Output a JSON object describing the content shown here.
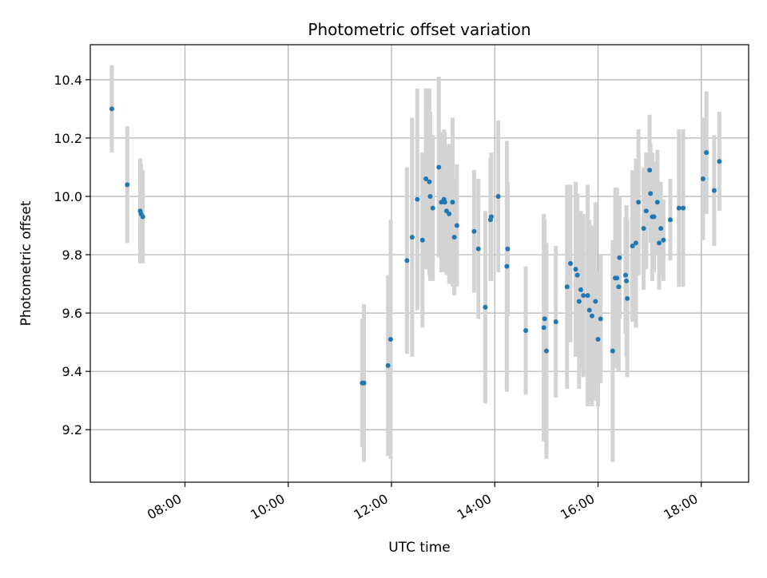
{
  "chart_data": {
    "type": "scatter",
    "title": "Photometric offset variation",
    "xlabel": "UTC time",
    "ylabel": "Photometric offset",
    "x_ticks": [
      "08:00",
      "10:00",
      "12:00",
      "14:00",
      "16:00",
      "18:00"
    ],
    "y_ticks": [
      "9.2",
      "9.4",
      "9.6",
      "9.8",
      "10.0",
      "10.2",
      "10.4"
    ],
    "xlim": [
      "06:10",
      "18:55"
    ],
    "ylim": [
      9.02,
      10.52
    ],
    "grid": true,
    "legend": "none",
    "colors": {
      "point": "#1f77b4",
      "errorbar": "#d3d3d3",
      "grid": "#b0b0b0"
    },
    "series": [
      {
        "x": [
          "06:35",
          "06:53",
          "07:08",
          "07:09",
          "07:11",
          "11:26",
          "11:28",
          "11:56",
          "11:59",
          "12:18",
          "12:24",
          "12:30",
          "12:36",
          "12:40",
          "12:44",
          "12:45",
          "12:48",
          "12:55",
          "12:58",
          "13:01",
          "13:02",
          "13:04",
          "13:07",
          "13:11",
          "13:13",
          "13:16",
          "13:36",
          "13:41",
          "13:49",
          "13:55",
          "13:56",
          "14:04",
          "14:14",
          "14:15",
          "14:36",
          "14:57",
          "14:58",
          "15:00",
          "15:11",
          "15:24",
          "15:28",
          "15:34",
          "15:36",
          "15:38",
          "15:40",
          "15:43",
          "15:48",
          "15:50",
          "15:53",
          "15:57",
          "16:00",
          "16:03",
          "16:17",
          "16:20",
          "16:22",
          "16:24",
          "16:25",
          "16:32",
          "16:33",
          "16:34",
          "16:40",
          "16:44",
          "16:47",
          "16:53",
          "16:56",
          "17:00",
          "17:01",
          "17:03",
          "17:05",
          "17:09",
          "17:11",
          "17:13",
          "17:16",
          "17:24",
          "17:34",
          "17:39",
          "18:02",
          "18:06",
          "18:15",
          "18:21"
        ],
        "y": [
          10.3,
          10.04,
          9.95,
          9.94,
          9.93,
          9.36,
          9.36,
          9.42,
          9.51,
          9.78,
          9.86,
          9.99,
          9.85,
          10.06,
          10.05,
          10.0,
          9.96,
          10.1,
          9.98,
          9.99,
          9.98,
          9.95,
          9.94,
          9.98,
          9.86,
          9.9,
          9.88,
          9.82,
          9.62,
          9.92,
          9.93,
          10.0,
          9.76,
          9.82,
          9.54,
          9.55,
          9.58,
          9.47,
          9.57,
          9.69,
          9.77,
          9.75,
          9.73,
          9.64,
          9.68,
          9.66,
          9.66,
          9.61,
          9.59,
          9.64,
          9.51,
          9.58,
          9.47,
          9.72,
          9.72,
          9.69,
          9.79,
          9.73,
          9.71,
          9.65,
          9.83,
          9.84,
          9.98,
          9.89,
          9.95,
          10.09,
          10.01,
          9.93,
          9.93,
          9.98,
          9.84,
          9.89,
          9.85,
          9.92,
          9.96,
          9.96,
          10.06,
          10.15,
          10.02,
          10.12
        ],
        "yerr": [
          0.15,
          0.2,
          0.18,
          0.17,
          0.16,
          0.22,
          0.27,
          0.31,
          0.41,
          0.32,
          0.41,
          0.38,
          0.3,
          0.31,
          0.32,
          0.29,
          0.25,
          0.31,
          0.24,
          0.24,
          0.24,
          0.22,
          0.24,
          0.29,
          0.2,
          0.21,
          0.21,
          0.24,
          0.33,
          0.21,
          0.22,
          0.26,
          0.43,
          0.23,
          0.22,
          0.39,
          0.34,
          0.37,
          0.26,
          0.35,
          0.27,
          0.3,
          0.28,
          0.3,
          0.27,
          0.28,
          0.38,
          0.31,
          0.31,
          0.34,
          0.23,
          0.22,
          0.38,
          0.31,
          0.31,
          0.29,
          0.21,
          0.2,
          0.26,
          0.27,
          0.26,
          0.29,
          0.25,
          0.21,
          0.2,
          0.19,
          0.17,
          0.22,
          0.19,
          0.18,
          0.16,
          0.16,
          0.14,
          0.14,
          0.27,
          0.27,
          0.21,
          0.21,
          0.19,
          0.17
        ]
      }
    ]
  }
}
